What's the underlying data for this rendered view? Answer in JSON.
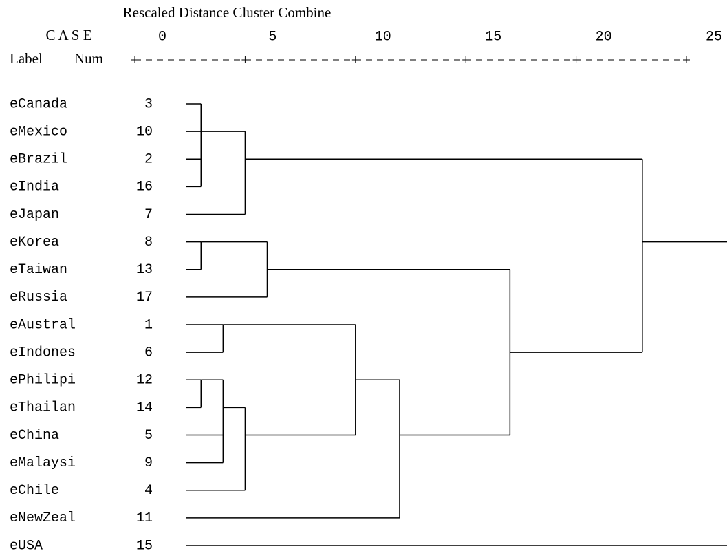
{
  "chart_data": {
    "type": "dendrogram",
    "title": "Rescaled Distance Cluster Combine",
    "case_header": "C A S E",
    "label_header": "Label",
    "num_header": "Num",
    "xlim": [
      0,
      25
    ],
    "xticks": [
      0,
      5,
      10,
      15,
      20,
      25
    ],
    "clusters": [
      {
        "distance": 23,
        "children": [
          {
            "distance": 5,
            "children": [
              {
                "distance": 3,
                "children": [
                  {
                    "label": "eCanada",
                    "num": 3
                  },
                  {
                    "label": "eMexico",
                    "num": 10
                  },
                  {
                    "label": "eBrazil",
                    "num": 2
                  },
                  {
                    "label": "eIndia",
                    "num": 16
                  }
                ]
              },
              {
                "label": "eJapan",
                "num": 7
              }
            ]
          },
          {
            "distance": 17,
            "children": [
              {
                "distance": 6,
                "children": [
                  {
                    "distance": 3,
                    "children": [
                      {
                        "label": "eKorea",
                        "num": 8
                      },
                      {
                        "label": "eTaiwan",
                        "num": 13
                      }
                    ]
                  },
                  {
                    "label": "eRussia",
                    "num": 17
                  }
                ]
              },
              {
                "distance": 12,
                "children": [
                  {
                    "distance": 10,
                    "children": [
                      {
                        "distance": 4,
                        "children": [
                          {
                            "label": "eAustral",
                            "num": 1
                          },
                          {
                            "label": "eIndones",
                            "num": 6
                          }
                        ]
                      },
                      {
                        "distance": 5,
                        "children": [
                          {
                            "distance": 4,
                            "children": [
                              {
                                "distance": 3,
                                "children": [
                                  {
                                    "label": "ePhilipi",
                                    "num": 12
                                  },
                                  {
                                    "label": "eThailan",
                                    "num": 14
                                  }
                                ]
                              },
                              {
                                "label": "eChina",
                                "num": 5
                              },
                              {
                                "label": "eMalaysi",
                                "num": 9
                              }
                            ]
                          },
                          {
                            "label": "eChile",
                            "num": 4
                          }
                        ]
                      }
                    ]
                  },
                  {
                    "label": "eNewZeal",
                    "num": 11
                  }
                ]
              }
            ]
          }
        ]
      },
      {
        "label": "eUSA",
        "num": 15
      }
    ]
  }
}
